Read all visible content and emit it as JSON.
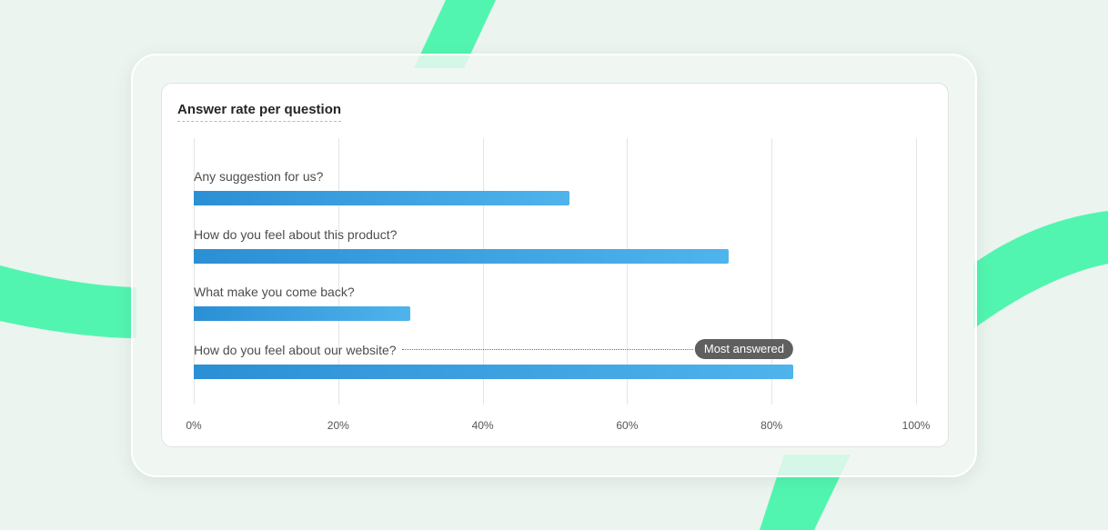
{
  "chart_data": {
    "type": "bar",
    "orientation": "horizontal",
    "title": "Answer rate per question",
    "categories": [
      "Any suggestion for us?",
      "How do you feel about this product?",
      "What make you come back?",
      "How do you feel about our website?"
    ],
    "values": [
      52,
      74,
      30,
      83
    ],
    "x_ticks": [
      "0%",
      "20%",
      "40%",
      "60%",
      "80%",
      "100%"
    ],
    "xlim": [
      0,
      100
    ],
    "grid": true,
    "highlight": {
      "category_index": 3,
      "label": "Most answered"
    },
    "colors": {
      "bar_start": "#2b8fd5",
      "bar_end": "#4fb3ec",
      "badge": "#5f5f5f"
    }
  },
  "theme": {
    "background": "#ebf4ee",
    "ribbon_color": "#52f5b0"
  }
}
